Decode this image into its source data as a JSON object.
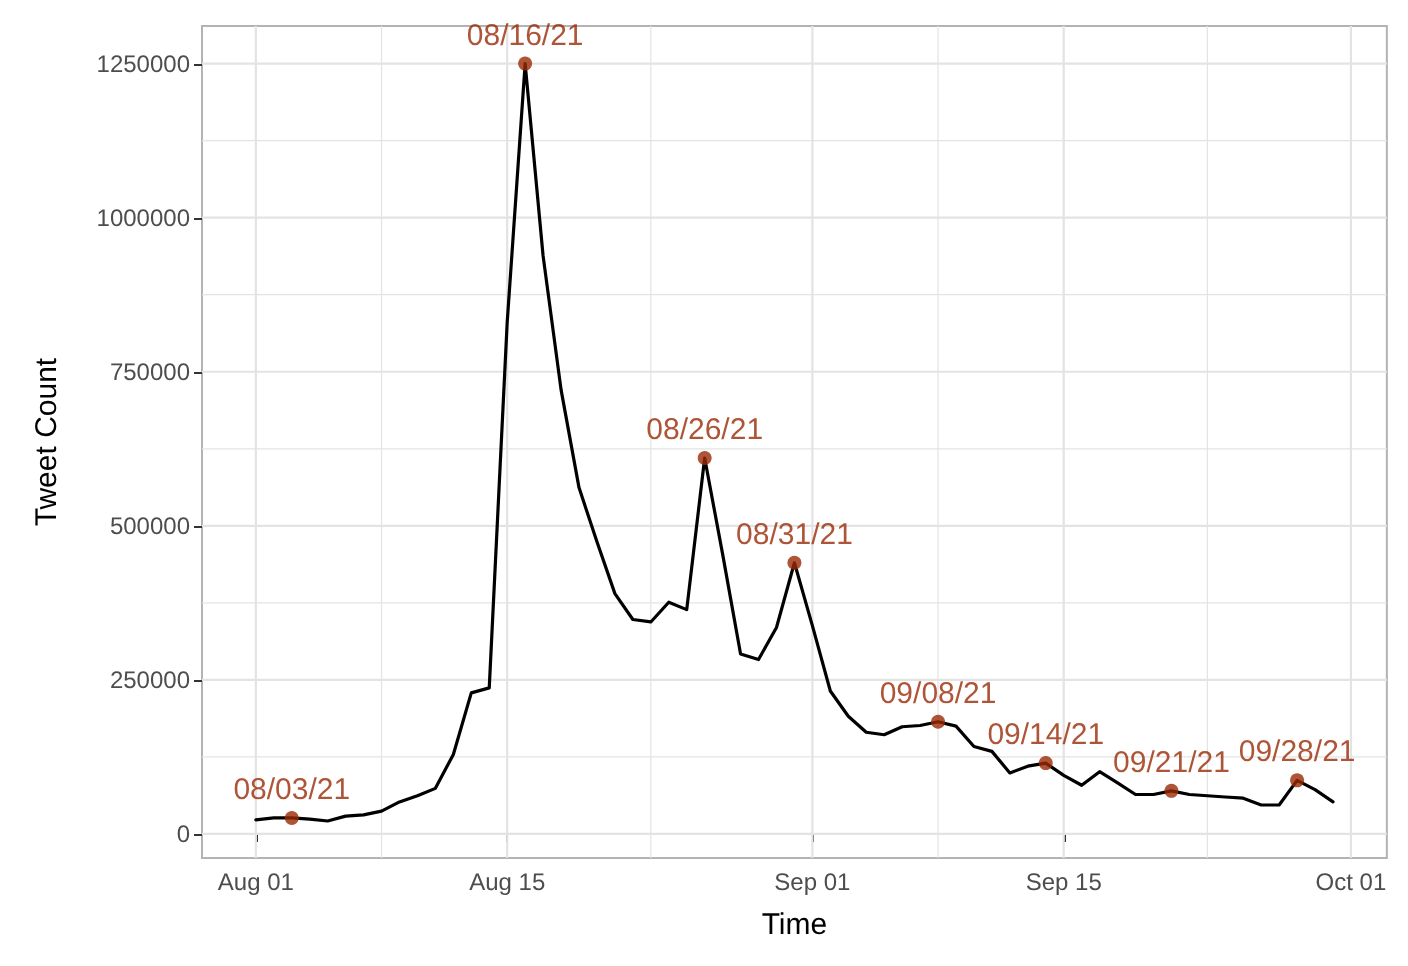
{
  "chart_data": {
    "type": "line",
    "xlabel": "Time",
    "ylabel": "Tweet Count",
    "xlim": [
      "--07-29",
      "--10-03"
    ],
    "xticks": [
      {
        "value": "--08-01",
        "label": "Aug 01"
      },
      {
        "value": "--08-08",
        "label": null
      },
      {
        "value": "--08-15",
        "label": "Aug 15"
      },
      {
        "value": "--08-23",
        "label": null
      },
      {
        "value": "--09-01",
        "label": "Sep 01"
      },
      {
        "value": "--09-08",
        "label": null
      },
      {
        "value": "--09-15",
        "label": "Sep 15"
      },
      {
        "value": "--09-23",
        "label": null
      },
      {
        "value": "--10-01",
        "label": "Oct 01"
      }
    ],
    "ylim": [
      -39000,
      1311000
    ],
    "yticks": [
      0,
      {
        "value": 125000,
        "label": null
      },
      250000,
      {
        "value": 375000,
        "label": null
      },
      500000,
      {
        "value": 625000,
        "label": null
      },
      750000,
      {
        "value": 875000,
        "label": null
      },
      1000000,
      {
        "value": 1125000,
        "label": null
      },
      1250000
    ],
    "grid": true,
    "series": [
      {
        "color": "#000000",
        "marker": "none",
        "x": [
          "--08-01",
          "--08-02",
          "--08-03",
          "--08-04",
          "--08-05",
          "--08-06",
          "--08-07",
          "--08-08",
          "--08-09",
          "--08-10",
          "--08-11",
          "--08-12",
          "--08-13",
          "--08-14",
          "--08-15",
          "--08-16",
          "--08-17",
          "--08-18",
          "--08-19",
          "--08-20",
          "--08-21",
          "--08-22",
          "--08-23",
          "--08-24",
          "--08-25",
          "--08-26",
          "--08-27",
          "--08-28",
          "--08-29",
          "--08-30",
          "--08-31",
          "--09-01",
          "--09-02",
          "--09-03",
          "--09-04",
          "--09-05",
          "--09-06",
          "--09-07",
          "--09-08",
          "--09-09",
          "--09-10",
          "--09-11",
          "--09-12",
          "--09-13",
          "--09-14",
          "--09-15",
          "--09-16",
          "--09-17",
          "--09-18",
          "--09-19",
          "--09-20",
          "--09-21",
          "--09-22",
          "--09-23",
          "--09-24",
          "--09-25",
          "--09-26",
          "--09-27",
          "--09-28",
          "--09-29",
          "--09-30"
        ],
        "values": [
          23000,
          26000,
          26000,
          24000,
          21000,
          29000,
          31000,
          37000,
          52000,
          62000,
          74000,
          129000,
          229000,
          237000,
          830000,
          1250000,
          938000,
          721000,
          562000,
          474000,
          390000,
          348000,
          344000,
          376000,
          364000,
          610000,
          454000,
          292000,
          283000,
          335000,
          440000,
          338000,
          232000,
          191000,
          165000,
          161000,
          174000,
          176000,
          182000,
          175000,
          142000,
          134000,
          99000,
          110000,
          115000,
          95000,
          79000,
          101000,
          83000,
          64000,
          64000,
          70000,
          64000,
          62000,
          60000,
          58000,
          47000,
          47000,
          87000,
          72000,
          52000
        ]
      },
      {
        "type": "scatter",
        "color": "#9a2a06",
        "marker": "circle",
        "x": [
          "--08-03",
          "--08-16",
          "--08-26",
          "--08-31",
          "--09-08",
          "--09-14",
          "--09-21",
          "--09-28"
        ],
        "values": [
          26000,
          1250000,
          610000,
          440000,
          182000,
          115000,
          70000,
          87000
        ],
        "value_labels": [
          "08/03/21",
          "08/16/21",
          "08/26/21",
          "08/31/21",
          "09/08/21",
          "09/14/21",
          "09/21/21",
          "09/28/21"
        ]
      }
    ]
  }
}
